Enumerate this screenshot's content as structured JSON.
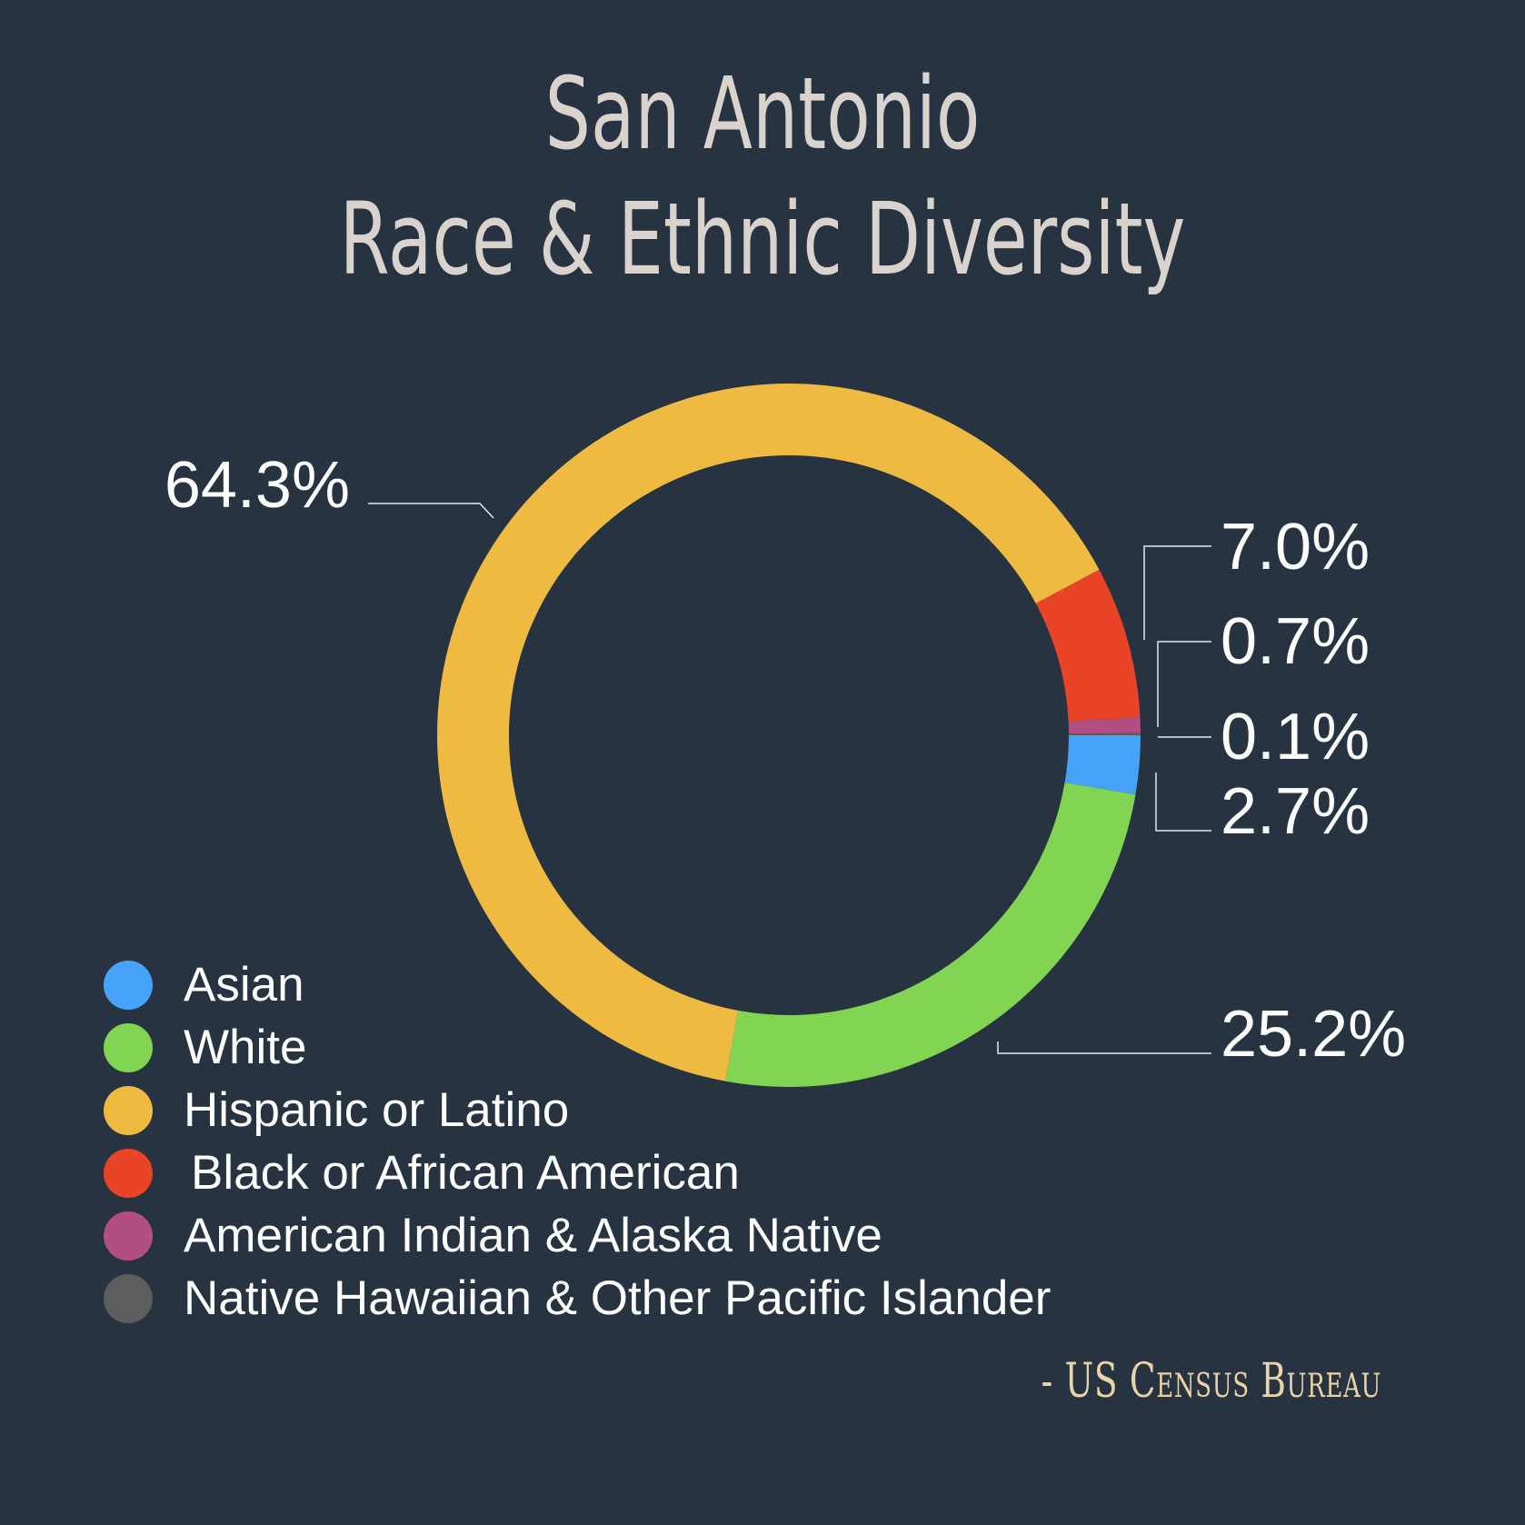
{
  "title_line1": "San Antonio",
  "title_line2": "Race & Ethnic Diversity",
  "source": "- US Census Bureau",
  "chart_data": {
    "type": "donut",
    "title": "San Antonio Race & Ethnic Diversity",
    "legend_position": "bottom-left",
    "slices": [
      {
        "name": "Asian",
        "value": 2.7,
        "label": "2.7%",
        "color": "#47a2f9"
      },
      {
        "name": "White",
        "value": 25.2,
        "label": "25.2%",
        "color": "#82d453"
      },
      {
        "name": "Hispanic or Latino",
        "value": 64.3,
        "label": "64.3%",
        "color": "#efba41"
      },
      {
        "name": "Black or African American",
        "value": 7.0,
        "label": "7.0%",
        "color": "#e94428"
      },
      {
        "name": "American Indian & Alaska Native",
        "value": 0.7,
        "label": "0.7%",
        "color": "#b14f85"
      },
      {
        "name": "Native Hawaiian & Other Pacific Islander",
        "value": 0.1,
        "label": "0.1%",
        "color": "#5d5d5d"
      }
    ]
  },
  "legend": [
    {
      "label": "Asian",
      "color": "#47a2f9"
    },
    {
      "label": "White",
      "color": "#82d453"
    },
    {
      "label": "Hispanic or Latino",
      "color": "#efba41"
    },
    {
      "label": "Black or African American",
      "color": "#e94428"
    },
    {
      "label": "American Indian & Alaska Native",
      "color": "#b14f85"
    },
    {
      "label": "Native Hawaiian & Other Pacific Islander",
      "color": "#5d5d5d"
    }
  ]
}
